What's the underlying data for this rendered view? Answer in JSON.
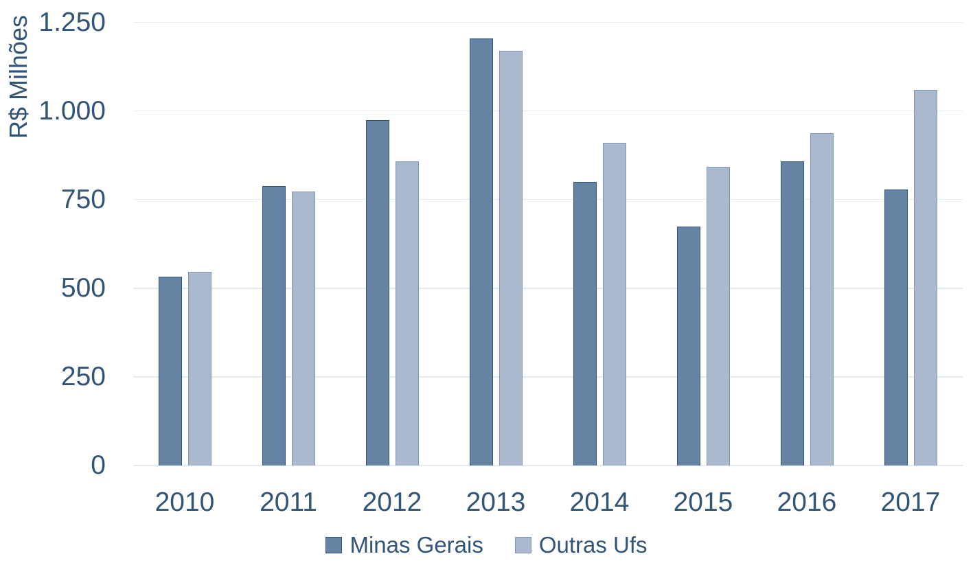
{
  "chart_data": {
    "type": "bar",
    "title": "",
    "xlabel": "",
    "ylabel": "R$ Milhões",
    "categories": [
      "2010",
      "2011",
      "2012",
      "2013",
      "2014",
      "2015",
      "2016",
      "2017"
    ],
    "series": [
      {
        "name": "Minas Gerais",
        "values": [
          533,
          789,
          975,
          1205,
          800,
          674,
          858,
          778
        ],
        "fill_color": "#6683A3",
        "border_color": "#31577F"
      },
      {
        "name": "Outras Ufs",
        "values": [
          547,
          773,
          858,
          1170,
          911,
          843,
          937,
          1060
        ],
        "fill_color": "#AAB9CD",
        "border_color": "#8096B5"
      }
    ],
    "ylim": [
      0,
      1250
    ],
    "y_ticks": [
      {
        "value": 0,
        "label": "0"
      },
      {
        "value": 250,
        "label": "250"
      },
      {
        "value": 500,
        "label": "500"
      },
      {
        "value": 750,
        "label": "750"
      },
      {
        "value": 1000,
        "label": "1.000"
      },
      {
        "value": 1250,
        "label": "1.250"
      }
    ],
    "grid": true,
    "gridline_color": "#E6EBF2",
    "text_color": "#325476",
    "legend_position": "bottom-center"
  }
}
